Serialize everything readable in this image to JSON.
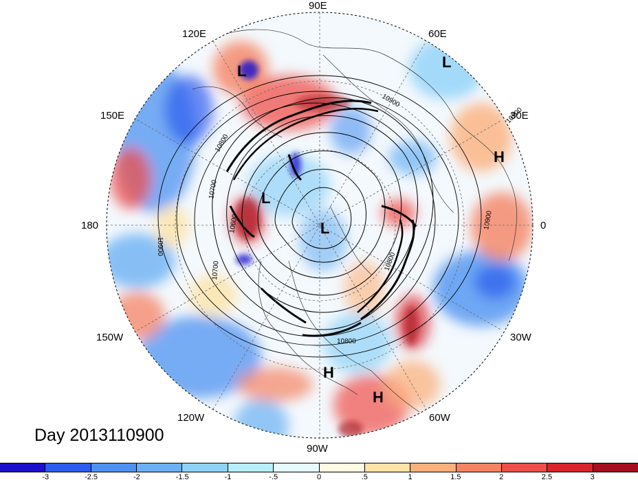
{
  "title": "Day 2013110900",
  "longitude_labels": {
    "top": "90E",
    "top_left": "120E",
    "top_right": "60E",
    "upper_left": "150E",
    "upper_right": "30E",
    "left": "180",
    "right": "0",
    "lower_left": "150W",
    "lower_right": "30W",
    "bottom_left": "120W",
    "bottom_right": "60W",
    "bottom": "90W"
  },
  "pressure_centers": [
    "L",
    "L",
    "H",
    "L",
    "L",
    "H",
    "H"
  ],
  "contour_labels": [
    "10900",
    "10800",
    "10700",
    "10600",
    "10700",
    "10900",
    "10800",
    "10900",
    "10800",
    "10900"
  ],
  "colorbar": {
    "colors": [
      "#1c0fcc",
      "#2c5cee",
      "#4d92f0",
      "#6ab0f2",
      "#8fd2f7",
      "#b6effb",
      "#e5fbfe",
      "#fffbe0",
      "#fde3a7",
      "#fbb07c",
      "#f58362",
      "#ef4f49",
      "#d8242a",
      "#a50f1e"
    ],
    "ticks": [
      "-3",
      "-2.5",
      "-2",
      "-1.5",
      "-1",
      "-.5",
      "0",
      ".5",
      "1",
      "1.5",
      "2",
      "2.5",
      "3"
    ]
  }
}
